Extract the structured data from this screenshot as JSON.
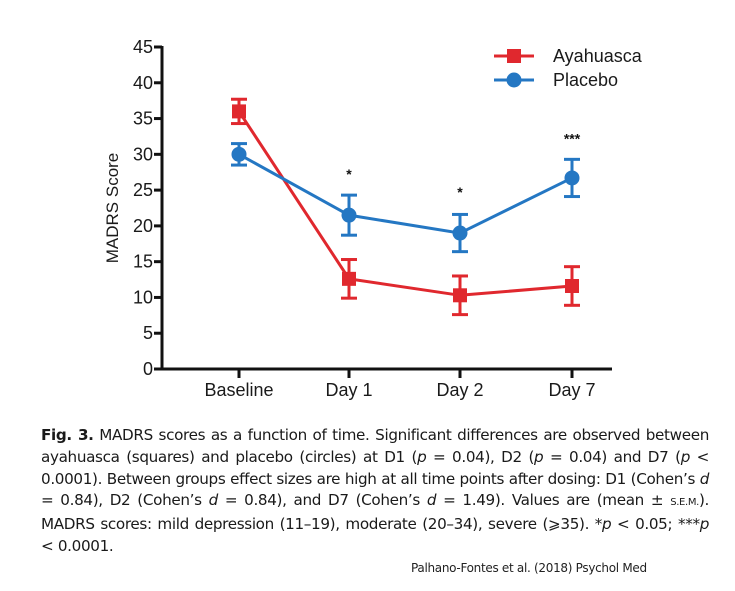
{
  "chart_data": {
    "type": "line",
    "title": "",
    "xlabel": "",
    "ylabel": "MADRS Score",
    "ylim": [
      0,
      45
    ],
    "yticks": [
      0,
      5,
      10,
      15,
      20,
      25,
      30,
      35,
      40,
      45
    ],
    "categories": [
      "Baseline",
      "Day 1",
      "Day 2",
      "Day 7"
    ],
    "grid": false,
    "legend_position": "top-right",
    "series": [
      {
        "name": "Ayahuasca",
        "marker": "square",
        "color": "#e0282e",
        "values": [
          36.0,
          12.6,
          10.3,
          11.6
        ],
        "sem": [
          1.7,
          2.7,
          2.7,
          2.7
        ]
      },
      {
        "name": "Placebo",
        "marker": "circle",
        "color": "#2477c3",
        "values": [
          30.0,
          21.5,
          19.0,
          26.7
        ],
        "sem": [
          1.5,
          2.8,
          2.6,
          2.6
        ]
      }
    ],
    "annotations": [
      {
        "category": "Day 1",
        "text": "*",
        "y": 27.5
      },
      {
        "category": "Day 2",
        "text": "*",
        "y": 25.0
      },
      {
        "category": "Day 7",
        "text": "***",
        "y": 32.5
      }
    ]
  },
  "caption": {
    "fig_label": "Fig. 3.",
    "parts": {
      "s1": " MADRS scores as a function of time. Significant differences are observed between ayahuasca (squares) and placebo (circles) at D1 (",
      "p": "p",
      "s2": " = 0.04), D2 (",
      "s3": " = 0.04) and D7 (",
      "s4": " < 0.0001). Between groups effect sizes are high at all time points after dosing: D1 (Cohen’s ",
      "d": "d",
      "s5": " = 0.84), D2 (Cohen’s ",
      "s6": " = 0.84), and D7 (Cohen’s ",
      "s7": " = 1.49). Values are (mean ± ",
      "sem": "S.E.M.",
      "s8": "). MADRS scores: mild depression (11–19), moderate (20–34), severe (⩾35). *",
      "s9": " < 0.05; ***",
      "s10": " < 0.0001."
    }
  },
  "citation": "Palhano-Fontes et al. (2018) Psychol Med"
}
